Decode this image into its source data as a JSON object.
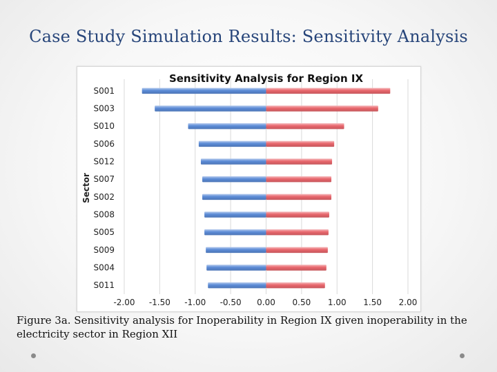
{
  "slide": {
    "title": "Case Study Simulation Results: Sensitivity Analysis",
    "caption": "Figure 3a. Sensitivity analysis for Inoperability in Region IX given inoperability in the electricity sector in Region XII"
  },
  "chart_data": {
    "type": "bar",
    "orientation": "horizontal",
    "layout": "tornado",
    "title": "Sensitivity Analysis for Region IX",
    "ylabel": "Sector",
    "xlabel": "",
    "categories": [
      "S001",
      "S003",
      "S010",
      "S006",
      "S012",
      "S007",
      "S002",
      "S008",
      "S005",
      "S009",
      "S004",
      "S011"
    ],
    "series": [
      {
        "values": [
          -1.75,
          -1.57,
          -1.1,
          -0.95,
          -0.92,
          -0.9,
          -0.9,
          -0.87,
          -0.87,
          -0.85,
          -0.84,
          -0.82
        ],
        "color": "#5b8bd6"
      },
      {
        "values": [
          1.75,
          1.58,
          1.1,
          0.96,
          0.93,
          0.92,
          0.92,
          0.89,
          0.88,
          0.87,
          0.85,
          0.83
        ],
        "color": "#e8666c"
      }
    ],
    "xlim": [
      -2.0,
      2.0
    ],
    "xticks": [
      "-2.00",
      "-1.50",
      "-1.00",
      "-0.50",
      "0.00",
      "0.50",
      "1.00",
      "1.50",
      "2.00"
    ],
    "grid": "vertical",
    "legend": "none"
  }
}
